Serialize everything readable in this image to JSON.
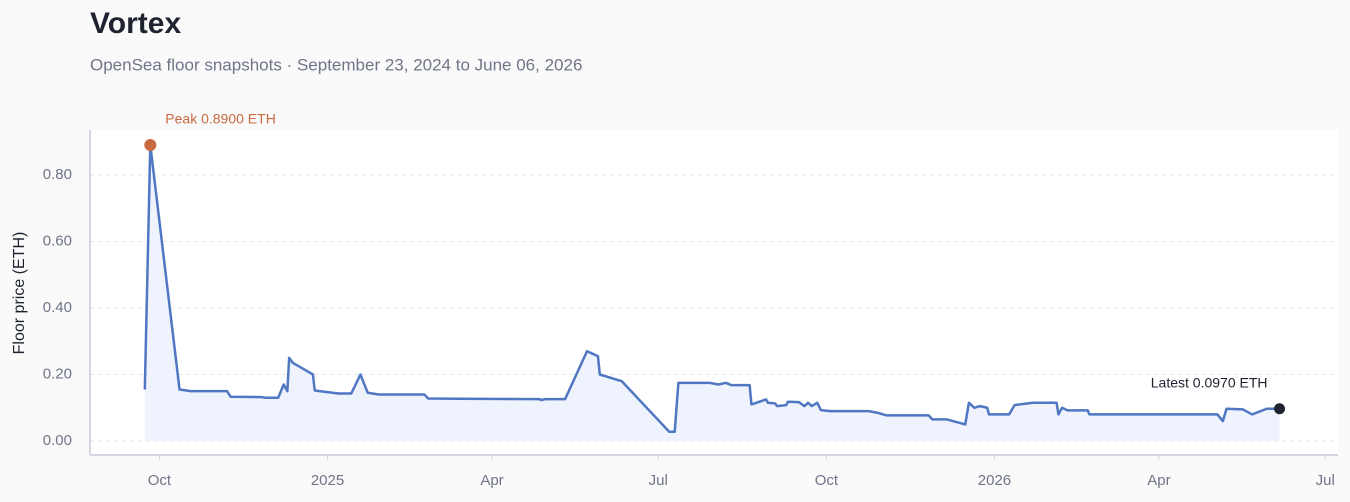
{
  "chart_data": {
    "type": "line",
    "title": "Vortex",
    "subtitle": "OpenSea floor snapshots · September 23, 2024 to June 06, 2026",
    "y_label": "Floor price (ETH)",
    "annotations": {
      "peak": "Peak 0.8900 ETH",
      "latest": "Latest 0.0970 ETH"
    },
    "x": [
      "2024-09-23",
      "2024-09-26",
      "2024-10-12",
      "2024-10-18",
      "2024-11-07",
      "2024-11-09",
      "2024-11-26",
      "2024-11-28",
      "2024-12-05",
      "2024-12-08",
      "2024-12-10",
      "2024-12-11",
      "2024-12-13",
      "2024-12-24",
      "2024-12-25",
      "2025-01-07",
      "2025-01-14",
      "2025-01-19",
      "2025-01-23",
      "2025-01-29",
      "2025-02-23",
      "2025-02-25",
      "2025-03-14",
      "2025-04-27",
      "2025-04-28",
      "2025-04-30",
      "2025-05-11",
      "2025-05-23",
      "2025-05-27",
      "2025-05-29",
      "2025-05-30",
      "2025-06-11",
      "2025-07-07",
      "2025-07-10",
      "2025-07-12",
      "2025-07-29",
      "2025-08-03",
      "2025-08-07",
      "2025-08-10",
      "2025-08-20",
      "2025-08-21",
      "2025-08-29",
      "2025-08-30",
      "2025-09-03",
      "2025-09-04",
      "2025-09-09",
      "2025-09-10",
      "2025-09-16",
      "2025-09-19",
      "2025-09-21",
      "2025-09-23",
      "2025-09-26",
      "2025-09-28",
      "2025-10-03",
      "2025-10-24",
      "2025-10-29",
      "2025-11-03",
      "2025-11-26",
      "2025-11-28",
      "2025-12-06",
      "2025-12-16",
      "2025-12-18",
      "2025-12-21",
      "2025-12-24",
      "2025-12-28",
      "2025-12-29",
      "2026-01-09",
      "2026-01-12",
      "2026-01-22",
      "2026-02-04",
      "2026-02-05",
      "2026-02-07",
      "2026-02-10",
      "2026-02-21",
      "2026-02-22",
      "2026-05-03",
      "2026-05-06",
      "2026-05-08",
      "2026-05-17",
      "2026-05-22",
      "2026-05-30",
      "2026-06-06"
    ],
    "series": [
      {
        "name": "Floor price",
        "color": "#5077c2",
        "values": [
          0.155,
          0.89,
          0.155,
          0.15,
          0.15,
          0.133,
          0.132,
          0.13,
          0.13,
          0.17,
          0.15,
          0.25,
          0.235,
          0.2,
          0.152,
          0.143,
          0.143,
          0.2,
          0.145,
          0.14,
          0.14,
          0.128,
          0.127,
          0.126,
          0.123,
          0.126,
          0.126,
          0.27,
          0.26,
          0.255,
          0.2,
          0.18,
          0.028,
          0.028,
          0.175,
          0.175,
          0.17,
          0.175,
          0.168,
          0.168,
          0.11,
          0.125,
          0.115,
          0.113,
          0.105,
          0.108,
          0.118,
          0.117,
          0.105,
          0.115,
          0.105,
          0.115,
          0.093,
          0.09,
          0.09,
          0.085,
          0.077,
          0.077,
          0.065,
          0.065,
          0.05,
          0.115,
          0.1,
          0.105,
          0.1,
          0.08,
          0.08,
          0.108,
          0.115,
          0.115,
          0.08,
          0.1,
          0.092,
          0.092,
          0.08,
          0.08,
          0.06,
          0.097,
          0.095,
          0.08,
          0.097,
          0.097
        ]
      }
    ],
    "xlim": [
      "2024-08-24",
      "2026-07-08"
    ],
    "xticks": [
      {
        "value": "2024-10-01",
        "label": "Oct"
      },
      {
        "value": "2025-01-01",
        "label": "2025"
      },
      {
        "value": "2025-04-01",
        "label": "Apr"
      },
      {
        "value": "2025-07-01",
        "label": "Jul"
      },
      {
        "value": "2025-10-01",
        "label": "Oct"
      },
      {
        "value": "2026-01-01",
        "label": "2026"
      },
      {
        "value": "2026-04-01",
        "label": "Apr"
      },
      {
        "value": "2026-07-01",
        "label": "Jul"
      }
    ],
    "ylim": [
      -0.042,
      0.935
    ],
    "yticks": [
      {
        "value": 0,
        "label": "0.00"
      },
      {
        "value": 0.2,
        "label": "0.20"
      },
      {
        "value": 0.4,
        "label": "0.40"
      },
      {
        "value": 0.6,
        "label": "0.60"
      },
      {
        "value": 0.8,
        "label": "0.80"
      }
    ],
    "grid": true,
    "area_color": "#eef3fd",
    "peak_color": "#c8693f",
    "latest_color": "#1f2330"
  }
}
